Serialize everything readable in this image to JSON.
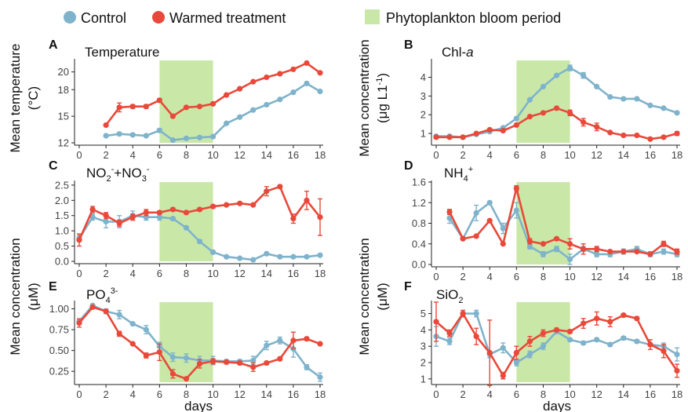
{
  "legend": {
    "control_label": "Control",
    "warm_label": "Warmed treatment",
    "bloom_label": "Phytoplankton bloom period"
  },
  "colors": {
    "control": "#7FB3CB",
    "warm": "#E8493A",
    "bloom": "#C9E8A8"
  },
  "shared_ylabels": {
    "left_top": "Mean temperature",
    "left_top_unit": "(°C)",
    "left_bottom": "Mean concentration",
    "left_bottom_unit": "(μM)",
    "right_top": "Mean concentration",
    "right_top_unit": "(μg L1",
    "right_top_unit_sup": "-1",
    "right_top_unit_end": ")",
    "right_bottom": "Mean concentration",
    "right_bottom_unit": "(μM)"
  },
  "xlabel": "days",
  "chart_data": [
    {
      "id": "A",
      "letter": "A",
      "type": "line",
      "title": "Temperature",
      "bloom": [
        6,
        10
      ],
      "xlim": [
        0,
        18
      ],
      "xticks": [
        0,
        2,
        4,
        6,
        8,
        10,
        12,
        14,
        16,
        18
      ],
      "ylim": [
        12,
        21.3
      ],
      "yticks": [
        12,
        15,
        18,
        20
      ],
      "series": [
        {
          "name": "Control",
          "x": [
            2,
            3,
            4,
            5,
            6,
            7,
            8,
            9,
            10,
            11,
            12,
            13,
            14,
            15,
            16,
            17,
            18
          ],
          "y": [
            12.8,
            13.0,
            12.9,
            12.8,
            13.4,
            12.3,
            12.5,
            12.6,
            12.7,
            14.2,
            14.9,
            15.7,
            16.3,
            16.9,
            17.7,
            18.7,
            17.8
          ],
          "err": [
            0,
            0.1,
            0,
            0.1,
            0.2,
            0.1,
            0.1,
            0.1,
            0.1,
            0.1,
            0,
            0,
            0,
            0,
            0,
            0,
            0
          ]
        },
        {
          "name": "Warmed treatment",
          "x": [
            2,
            3,
            4,
            5,
            6,
            7,
            8,
            9,
            10,
            11,
            12,
            13,
            14,
            15,
            16,
            17,
            18
          ],
          "y": [
            14.0,
            16.0,
            16.1,
            16.1,
            16.8,
            15.0,
            16.0,
            16.1,
            16.4,
            17.4,
            18.1,
            18.9,
            19.4,
            19.8,
            20.3,
            21.0,
            19.9
          ],
          "err": [
            0,
            0.5,
            0.2,
            0.2,
            0.2,
            0.1,
            0.1,
            0.1,
            0.1,
            0,
            0,
            0,
            0,
            0,
            0,
            0,
            0
          ]
        }
      ]
    },
    {
      "id": "B",
      "letter": "B",
      "type": "line",
      "title": "Chl-",
      "title_italic": "a",
      "bloom": [
        6,
        10
      ],
      "xlim": [
        0,
        18
      ],
      "xticks": [
        0,
        2,
        4,
        6,
        8,
        10,
        12,
        14,
        16,
        18
      ],
      "ylim": [
        0.5,
        4.9
      ],
      "yticks": [
        1,
        2,
        3,
        4
      ],
      "series": [
        {
          "name": "Control",
          "x": [
            0,
            1,
            2,
            3,
            4,
            5,
            6,
            7,
            8,
            9,
            10,
            11,
            12,
            13,
            14,
            15,
            16,
            17,
            18
          ],
          "y": [
            0.85,
            0.85,
            0.8,
            0.95,
            1.1,
            1.3,
            1.8,
            2.8,
            3.5,
            4.1,
            4.5,
            4.1,
            3.5,
            2.95,
            2.85,
            2.85,
            2.5,
            2.35,
            2.1
          ],
          "err": [
            0,
            0,
            0,
            0,
            0,
            0,
            0,
            0,
            0,
            0,
            0.15,
            0.15,
            0,
            0,
            0,
            0,
            0,
            0,
            0
          ]
        },
        {
          "name": "Warmed treatment",
          "x": [
            0,
            1,
            2,
            3,
            4,
            5,
            6,
            7,
            8,
            9,
            10,
            11,
            12,
            13,
            14,
            15,
            16,
            17,
            18
          ],
          "y": [
            0.8,
            0.8,
            0.8,
            1.0,
            1.2,
            1.15,
            1.45,
            1.9,
            2.1,
            2.35,
            2.1,
            1.6,
            1.35,
            1.05,
            0.9,
            0.9,
            0.7,
            0.8,
            1.0
          ],
          "err": [
            0,
            0,
            0,
            0,
            0,
            0,
            0,
            0,
            0,
            0,
            0.15,
            0.2,
            0.2,
            0,
            0,
            0,
            0,
            0,
            0.1
          ]
        }
      ]
    },
    {
      "id": "C",
      "letter": "C",
      "type": "line",
      "title_main": "NO",
      "title_sub": "2",
      "title_sup": "-",
      "title_mid": "+NO",
      "title_sub2": "3",
      "title_sup2": "-",
      "bloom": [
        6,
        10
      ],
      "xlim": [
        0,
        18
      ],
      "xticks": [
        0,
        2,
        4,
        6,
        8,
        10,
        12,
        14,
        16,
        18
      ],
      "ylim": [
        0,
        2.6
      ],
      "yticks": [
        0.0,
        0.5,
        1.0,
        1.5,
        2.0,
        2.5
      ],
      "ytick_labels": [
        "0.0",
        "0.5",
        "1.0",
        "1.5",
        "2.0",
        "2.5"
      ],
      "series": [
        {
          "name": "Control",
          "x": [
            0,
            1,
            2,
            3,
            4,
            5,
            6,
            7,
            8,
            9,
            10,
            11,
            12,
            13,
            14,
            15,
            16,
            17,
            18
          ],
          "y": [
            0.75,
            1.45,
            1.3,
            1.3,
            1.5,
            1.45,
            1.45,
            1.4,
            1.1,
            0.65,
            0.3,
            0.15,
            0.1,
            0.05,
            0.25,
            0.15,
            0.15,
            0.15,
            0.2
          ],
          "err": [
            0.1,
            0.1,
            0.2,
            0.2,
            0.15,
            0.1,
            0.1,
            0.05,
            0.05,
            0.05,
            0.05,
            0,
            0,
            0,
            0,
            0,
            0,
            0,
            0
          ]
        },
        {
          "name": "Warmed treatment",
          "x": [
            0,
            1,
            2,
            3,
            4,
            5,
            6,
            7,
            8,
            9,
            10,
            11,
            12,
            13,
            14,
            15,
            16,
            17,
            18
          ],
          "y": [
            0.7,
            1.7,
            1.5,
            1.25,
            1.45,
            1.6,
            1.6,
            1.7,
            1.6,
            1.7,
            1.8,
            1.85,
            1.9,
            1.85,
            2.3,
            2.45,
            1.4,
            2.0,
            1.45
          ],
          "err": [
            0.2,
            0.1,
            0.1,
            0.1,
            0.1,
            0.1,
            0.05,
            0.05,
            0.05,
            0.05,
            0.05,
            0,
            0,
            0,
            0.15,
            0.05,
            0.15,
            0.3,
            0.6
          ]
        }
      ]
    },
    {
      "id": "D",
      "letter": "D",
      "type": "line",
      "title_main": "NH",
      "title_sub": "4",
      "title_sup": "+",
      "bloom": [
        6,
        10
      ],
      "xlim": [
        0,
        18
      ],
      "xticks": [
        0,
        2,
        4,
        6,
        8,
        10,
        12,
        14,
        16,
        18
      ],
      "ylim": [
        0,
        1.6
      ],
      "yticks": [
        0.0,
        0.4,
        0.8,
        1.2,
        1.6
      ],
      "ytick_labels": [
        "0.0",
        "0.4",
        "0.8",
        "1.2",
        "1.6"
      ],
      "series": [
        {
          "name": "Control",
          "x": [
            1,
            2,
            3,
            4,
            5,
            6,
            7,
            8,
            9,
            10,
            11,
            12,
            13,
            14,
            15,
            16,
            17,
            18
          ],
          "y": [
            0.9,
            0.5,
            1.0,
            1.2,
            0.7,
            1.05,
            0.35,
            0.2,
            0.3,
            0.1,
            0.3,
            0.2,
            0.2,
            0.25,
            0.3,
            0.2,
            0.25,
            0.2
          ],
          "err": [
            0.1,
            0,
            0.15,
            0,
            0.1,
            0.15,
            0.05,
            0.05,
            0.05,
            0.1,
            0.05,
            0.05,
            0.05,
            0.05,
            0.05,
            0.05,
            0.05,
            0.05
          ]
        },
        {
          "name": "Warmed treatment",
          "x": [
            1,
            2,
            3,
            4,
            5,
            6,
            7,
            8,
            9,
            10,
            11,
            12,
            13,
            14,
            15,
            16,
            17,
            18
          ],
          "y": [
            1.02,
            0.5,
            0.55,
            0.85,
            0.4,
            1.48,
            0.45,
            0.4,
            0.5,
            0.4,
            0.3,
            0.3,
            0.25,
            0.25,
            0.25,
            0.2,
            0.4,
            0.25
          ],
          "err": [
            0.05,
            0,
            0,
            0,
            0,
            0.05,
            0.05,
            0,
            0,
            0.1,
            0.1,
            0.05,
            0,
            0,
            0,
            0,
            0.05,
            0.05
          ]
        }
      ]
    },
    {
      "id": "E",
      "letter": "E",
      "type": "line",
      "title_main": "PO",
      "title_sub": "4",
      "title_sup": "3-",
      "bloom": [
        6,
        10
      ],
      "xlim": [
        0,
        18
      ],
      "xticks": [
        0,
        2,
        4,
        6,
        8,
        10,
        12,
        14,
        16,
        18
      ],
      "ylim": [
        0.12,
        1.08
      ],
      "yticks": [
        0.25,
        0.5,
        0.75,
        1.0
      ],
      "ytick_labels": [
        "0.25",
        "0.50",
        "0.75",
        "1.00"
      ],
      "series": [
        {
          "name": "Control",
          "x": [
            0,
            1,
            2,
            3,
            4,
            5,
            6,
            7,
            8,
            9,
            10,
            11,
            12,
            13,
            14,
            15,
            16,
            17,
            18
          ],
          "y": [
            0.85,
            1.04,
            0.97,
            0.93,
            0.82,
            0.75,
            0.55,
            0.42,
            0.41,
            0.38,
            0.38,
            0.37,
            0.37,
            0.38,
            0.56,
            0.62,
            0.52,
            0.3,
            0.18
          ],
          "err": [
            0.03,
            0,
            0.03,
            0.05,
            0,
            0.05,
            0.05,
            0.05,
            0.05,
            0.05,
            0.05,
            0.02,
            0.02,
            0.05,
            0.05,
            0.04,
            0.1,
            0.03,
            0.05
          ]
        },
        {
          "name": "Warmed treatment",
          "x": [
            0,
            1,
            2,
            3,
            4,
            5,
            6,
            7,
            8,
            9,
            10,
            11,
            12,
            13,
            14,
            15,
            16,
            17,
            18
          ],
          "y": [
            0.83,
            1.02,
            0.97,
            0.7,
            0.58,
            0.44,
            0.48,
            0.22,
            0.16,
            0.34,
            0.37,
            0.36,
            0.35,
            0.3,
            0.35,
            0.4,
            0.62,
            0.64,
            0.58
          ],
          "err": [
            0.05,
            0,
            0,
            0.03,
            0,
            0.03,
            0.1,
            0.05,
            0,
            0.05,
            0.03,
            0.02,
            0.02,
            0.05,
            0.02,
            0.02,
            0.1,
            0.02,
            0
          ]
        }
      ]
    },
    {
      "id": "F",
      "letter": "F",
      "type": "line",
      "title_main": "SiO",
      "title_sub": "2",
      "bloom": [
        6,
        10
      ],
      "xlim": [
        0,
        18
      ],
      "xticks": [
        0,
        2,
        4,
        6,
        8,
        10,
        12,
        14,
        16,
        18
      ],
      "ylim": [
        0.8,
        5.7
      ],
      "yticks": [
        1,
        2,
        3,
        4,
        5
      ],
      "series": [
        {
          "name": "Control",
          "x": [
            0,
            1,
            2,
            3,
            4,
            5,
            6,
            7,
            8,
            9,
            10,
            11,
            12,
            13,
            14,
            15,
            16,
            17,
            18
          ],
          "y": [
            3.6,
            3.3,
            5.0,
            5.0,
            2.5,
            2.9,
            2.0,
            2.5,
            3.0,
            3.9,
            3.4,
            3.2,
            3.4,
            3.1,
            3.5,
            3.3,
            3.1,
            3.0,
            2.5
          ],
          "err": [
            0.6,
            0.2,
            0.1,
            0.2,
            0.2,
            0.3,
            0.2,
            0.2,
            0.2,
            0.1,
            0.1,
            0.1,
            0.1,
            0.1,
            0.1,
            0.1,
            0.1,
            0.2,
            0.4
          ]
        },
        {
          "name": "Warmed treatment",
          "x": [
            0,
            1,
            2,
            3,
            4,
            5,
            6,
            7,
            8,
            9,
            10,
            11,
            12,
            13,
            14,
            15,
            16,
            17,
            18
          ],
          "y": [
            4.5,
            3.8,
            5.0,
            3.6,
            2.6,
            1.2,
            2.6,
            3.3,
            3.8,
            4.0,
            3.9,
            4.4,
            4.7,
            4.5,
            4.9,
            4.7,
            3.1,
            2.7,
            1.5
          ],
          "err": [
            1.2,
            0.2,
            0.2,
            0.5,
            2.0,
            0.2,
            0.4,
            0.3,
            0.2,
            0.1,
            0.1,
            0.3,
            0.4,
            0.3,
            0.1,
            0.1,
            0.3,
            0.4,
            0.4
          ]
        }
      ]
    }
  ]
}
